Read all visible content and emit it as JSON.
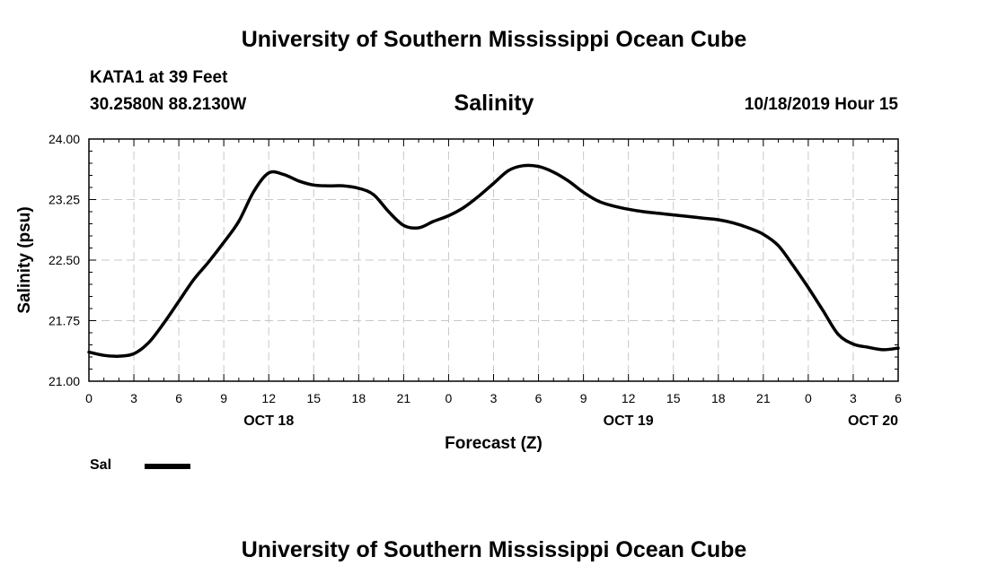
{
  "header": {
    "title": "University of Southern Mississippi Ocean Cube",
    "station": "KATA1 at 39 Feet",
    "location": "30.2580N 88.2130W",
    "run_time": "10/18/2019 Hour 15"
  },
  "footer": {
    "title": "University of Southern Mississippi Ocean Cube"
  },
  "legend": {
    "label": "Sal",
    "color": "#000000"
  },
  "chart_data": {
    "type": "line",
    "title": "Salinity",
    "xlabel": "Forecast (Z)",
    "ylabel": "Salinity (psu)",
    "ylim": [
      21.0,
      24.0
    ],
    "yticks": [
      "21.00",
      "21.75",
      "22.50",
      "23.25",
      "24.00"
    ],
    "xlim": [
      0,
      54
    ],
    "xtick_labels": [
      "0",
      "3",
      "6",
      "9",
      "12",
      "15",
      "18",
      "21",
      "0",
      "3",
      "6",
      "9",
      "12",
      "15",
      "18",
      "21",
      "0",
      "3",
      "6"
    ],
    "day_labels": [
      {
        "hour": 12,
        "label": "OCT 18"
      },
      {
        "hour": 36,
        "label": "OCT 19"
      },
      {
        "hour": 54,
        "label": "OCT 20"
      }
    ],
    "grid": true,
    "series": [
      {
        "name": "Sal",
        "color": "#000000",
        "x": [
          0,
          1,
          2,
          3,
          4,
          5,
          6,
          7,
          8,
          9,
          10,
          11,
          12,
          13,
          14,
          15,
          16,
          17,
          18,
          19,
          20,
          21,
          22,
          23,
          24,
          25,
          26,
          27,
          28,
          29,
          30,
          31,
          32,
          33,
          34,
          35,
          36,
          37,
          38,
          39,
          40,
          41,
          42,
          43,
          44,
          45,
          46,
          47,
          48,
          49,
          50,
          51,
          52,
          53,
          54
        ],
        "values": [
          21.36,
          21.32,
          21.31,
          21.34,
          21.48,
          21.72,
          21.99,
          22.26,
          22.48,
          22.72,
          22.98,
          23.35,
          23.58,
          23.56,
          23.48,
          23.43,
          23.42,
          23.42,
          23.39,
          23.31,
          23.1,
          22.93,
          22.9,
          22.98,
          23.05,
          23.15,
          23.29,
          23.45,
          23.61,
          23.67,
          23.66,
          23.59,
          23.48,
          23.34,
          23.23,
          23.17,
          23.13,
          23.1,
          23.08,
          23.06,
          23.04,
          23.02,
          23.0,
          22.96,
          22.9,
          22.82,
          22.68,
          22.43,
          22.16,
          21.87,
          21.58,
          21.46,
          21.42,
          21.39,
          21.41
        ]
      }
    ]
  }
}
